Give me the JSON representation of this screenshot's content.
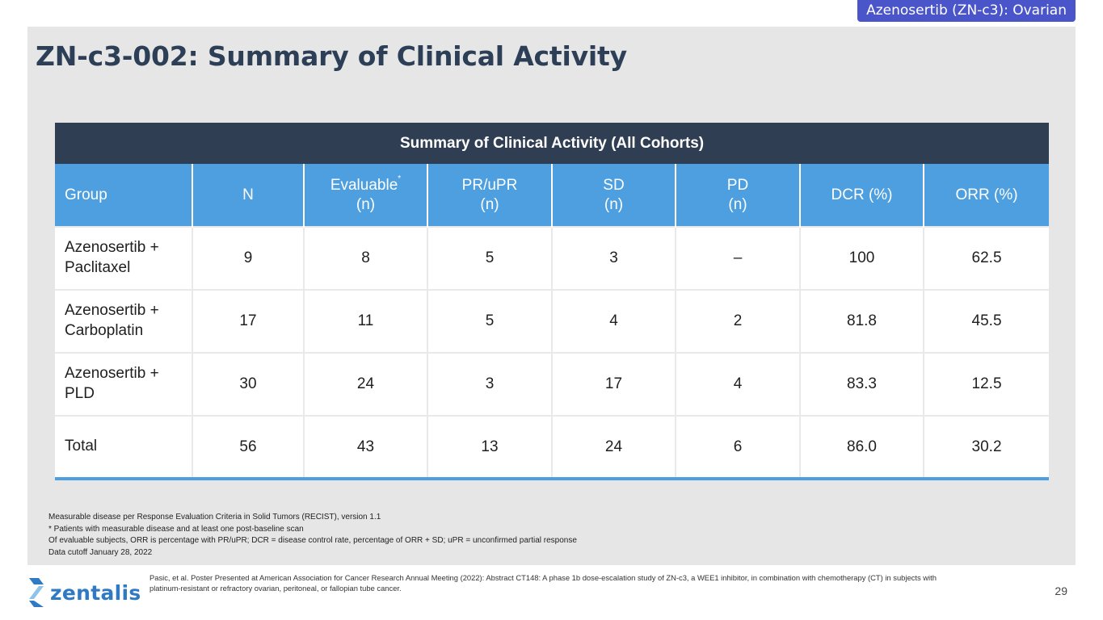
{
  "header": {
    "tag": "Azenosertib (ZN-c3): Ovarian",
    "title": "ZN-c3-002: Summary of Clinical Activity"
  },
  "table": {
    "caption": "Summary of Clinical Activity (All Cohorts)",
    "columns": [
      {
        "line1": "Group",
        "line2": "",
        "sup": ""
      },
      {
        "line1": "N",
        "line2": "",
        "sup": ""
      },
      {
        "line1": "Evaluable",
        "line2": "(n)",
        "sup": "*"
      },
      {
        "line1": "PR/uPR",
        "line2": "(n)",
        "sup": ""
      },
      {
        "line1": "SD",
        "line2": "(n)",
        "sup": ""
      },
      {
        "line1": "PD",
        "line2": "(n)",
        "sup": ""
      },
      {
        "line1": "DCR (%)",
        "line2": "",
        "sup": ""
      },
      {
        "line1": "ORR (%)",
        "line2": "",
        "sup": ""
      }
    ],
    "rows": [
      {
        "group": [
          "Azenosertib +",
          "Paclitaxel"
        ],
        "n": "9",
        "evaluable": "8",
        "pr": "5",
        "sd": "3",
        "pd": "–",
        "dcr": "100",
        "orr": "62.5"
      },
      {
        "group": [
          "Azenosertib +",
          "Carboplatin"
        ],
        "n": "17",
        "evaluable": "11",
        "pr": "5",
        "sd": "4",
        "pd": "2",
        "dcr": "81.8",
        "orr": "45.5"
      },
      {
        "group": [
          "Azenosertib +",
          "PLD"
        ],
        "n": "30",
        "evaluable": "24",
        "pr": "3",
        "sd": "17",
        "pd": "4",
        "dcr": "83.3",
        "orr": "12.5"
      },
      {
        "group": [
          "Total",
          ""
        ],
        "n": "56",
        "evaluable": "43",
        "pr": "13",
        "sd": "24",
        "pd": "6",
        "dcr": "86.0",
        "orr": "30.2"
      }
    ]
  },
  "footnotes": [
    "Measurable disease per Response Evaluation Criteria in Solid Tumors (RECIST), version 1.1",
    "* Patients with measurable disease and at least one post-baseline scan",
    "Of evaluable subjects, ORR is percentage with PR/uPR; DCR = disease control rate, percentage of ORR + SD; uPR = unconfirmed partial response",
    "Data cutoff January 28, 2022"
  ],
  "footer": {
    "logo_text": "zentalis",
    "logo_icon": "zentalis-z-icon",
    "reference_line1": "Pasic, et al. Poster Presented at American Association for Cancer Research Annual Meeting (2022): Abstract CT148: A phase 1b dose-escalation study of ZN-c3, a WEE1 inhibitor, in combination with chemotherapy (CT) in subjects with",
    "reference_line2": "platinum-resistant or refractory ovarian, peritoneal, or fallopian tube cancer.",
    "page_number": "29"
  },
  "colors": {
    "tag_bg": "#4a55c9",
    "title": "#2d3f56",
    "caption_bg": "#2f3e52",
    "header_bg": "#4d9fe0",
    "panel_bg": "#e6e6e6",
    "logo": "#2f7ac3"
  }
}
